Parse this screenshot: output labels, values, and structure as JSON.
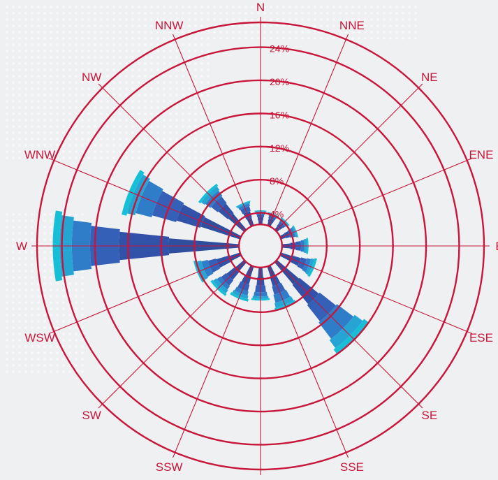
{
  "chart_data": {
    "type": "wind-rose",
    "directions": [
      "N",
      "NNE",
      "NE",
      "ENE",
      "E",
      "ESE",
      "SE",
      "SSE",
      "S",
      "SSW",
      "SW",
      "WSW",
      "W",
      "WNW",
      "NW",
      "NNW"
    ],
    "radial_ticks": [
      4,
      8,
      12,
      16,
      20,
      24
    ],
    "radial_tick_labels": [
      "4%",
      "8%",
      "12%",
      "16%",
      "20%",
      "24%"
    ],
    "radial_max": 27,
    "inner_hole": 2.6,
    "speed_classes": 6,
    "class_colors": [
      "#2f4ea0",
      "#3152a8",
      "#3560b8",
      "#2f7dc8",
      "#26a4d4",
      "#17bfd6"
    ],
    "frequencies": [
      [
        0.5,
        0.4,
        0.3,
        0.2,
        0.2,
        0.1
      ],
      [
        0.5,
        0.4,
        0.3,
        0.2,
        0.1,
        0.1
      ],
      [
        0.5,
        0.4,
        0.3,
        0.2,
        0.2,
        0.1
      ],
      [
        0.6,
        0.5,
        0.4,
        0.3,
        0.2,
        0.1
      ],
      [
        1.0,
        0.7,
        0.6,
        0.4,
        0.3,
        0.2
      ],
      [
        1.5,
        1.0,
        0.7,
        0.5,
        0.4,
        0.3
      ],
      [
        3.5,
        3.0,
        2.5,
        2.5,
        1.2,
        0.8
      ],
      [
        1.5,
        1.0,
        1.0,
        1.0,
        0.6,
        0.4
      ],
      [
        1.2,
        1.0,
        0.8,
        0.5,
        0.3,
        0.2
      ],
      [
        1.3,
        1.0,
        0.8,
        0.5,
        0.4,
        0.3
      ],
      [
        1.5,
        1.2,
        0.8,
        0.5,
        0.5,
        0.3
      ],
      [
        1.5,
        1.5,
        1.0,
        0.8,
        0.5,
        0.4
      ],
      [
        8.5,
        6.0,
        3.5,
        2.2,
        1.5,
        0.8
      ],
      [
        5.0,
        3.0,
        3.0,
        2.0,
        1.0,
        0.6
      ],
      [
        2.5,
        1.5,
        1.0,
        0.8,
        0.5,
        0.3
      ],
      [
        1.0,
        0.8,
        0.6,
        0.3,
        0.2,
        0.1
      ]
    ]
  }
}
